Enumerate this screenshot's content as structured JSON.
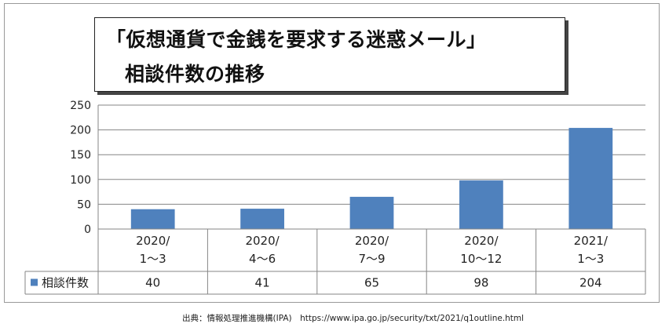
{
  "source_text": "出典：情報処理推進機構(IPA)　https://www.ipa.go.jp/security/txt/2021/q1outline.html",
  "colors": {
    "bar": "#4f81bd",
    "grid": "#868686",
    "table_border": "#868686"
  },
  "chart_data": {
    "type": "bar",
    "title": "「仮想通貨で金銭を要求する迷惑メール」",
    "subtitle": "相談件数の推移",
    "categories": [
      [
        "2020/",
        "1～3"
      ],
      [
        "2020/",
        "4～6"
      ],
      [
        "2020/",
        "7～9"
      ],
      [
        "2020/",
        "10～12"
      ],
      [
        "2021/",
        "1～3"
      ]
    ],
    "series": [
      {
        "name": "相談件数",
        "values": [
          40,
          41,
          65,
          98,
          204
        ]
      }
    ],
    "ylim": [
      0,
      250
    ],
    "yticks": [
      0,
      50,
      100,
      150,
      200,
      250
    ],
    "xlabel": "",
    "ylabel": "",
    "grid": true,
    "legend": "data-table-left"
  }
}
